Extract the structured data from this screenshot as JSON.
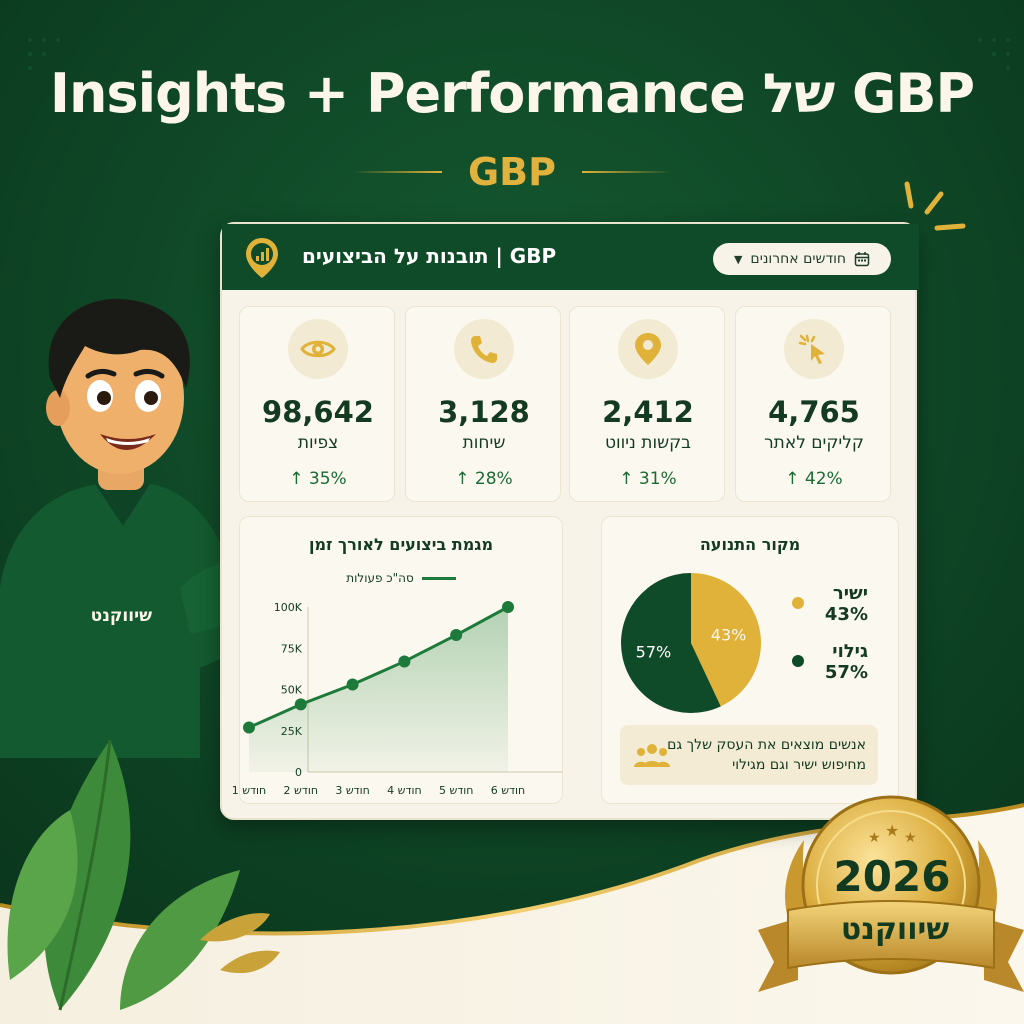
{
  "headline": "Insights + Performance של GBP",
  "subtitle": "GBP",
  "colors": {
    "dark_green": "#0f4a29",
    "gold": "#e0b23a",
    "cream": "#f7f3e8",
    "accent_green": "#1e7a3a"
  },
  "dashboard": {
    "title": "GBP | תובנות על הביצועים",
    "date_range": "חודשים אחרונים",
    "date_icon": "calendar-icon",
    "kpis": [
      {
        "icon": "cursor-click-icon",
        "value": "4,765",
        "label": "קליקים לאתר",
        "change": "↑ 42%"
      },
      {
        "icon": "map-pin-icon",
        "value": "2,412",
        "label": "בקשות ניווט",
        "change": "↑ 31%"
      },
      {
        "icon": "phone-icon",
        "value": "3,128",
        "label": "שיחות",
        "change": "↑ 28%"
      },
      {
        "icon": "eye-icon",
        "value": "98,642",
        "label": "צפיות",
        "change": "↑ 35%"
      }
    ]
  },
  "chart_data": [
    {
      "type": "area",
      "title": "מגמת ביצועים לאורך זמן",
      "categories": [
        "חודש 1",
        "חודש 2",
        "חודש 3",
        "חודש 4",
        "חודש 5",
        "חודש 6"
      ],
      "series": [
        {
          "name": "סה\"כ פעולות",
          "values": [
            27000,
            41000,
            53000,
            67000,
            83000,
            100000
          ]
        }
      ],
      "yticks": [
        "0",
        "25K",
        "50K",
        "75K",
        "100K"
      ],
      "ylim": [
        0,
        100000
      ],
      "grid": false,
      "legend": "top"
    },
    {
      "type": "pie",
      "title": "מקור התנועה",
      "slices": [
        {
          "name": "ישיר",
          "value": 43,
          "label": "43%",
          "color": "#e0b23a"
        },
        {
          "name": "גילוי",
          "value": 57,
          "label": "57%",
          "color": "#0f4a29"
        }
      ]
    }
  ],
  "traffic_note": {
    "text": "אנשים מוצאים את העסק שלך גם מחיפוש ישיר וגם מגילוי",
    "icon": "people-icon"
  },
  "mascot": {
    "shirt_logo": "שיווקנט"
  },
  "badge": {
    "year": "2026",
    "name": "שיווקנט"
  }
}
